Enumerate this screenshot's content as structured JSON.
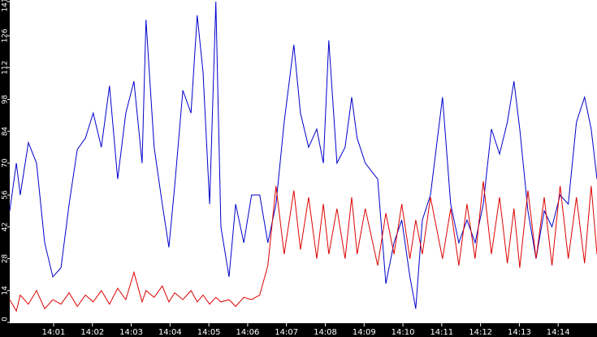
{
  "chart_data": {
    "type": "line",
    "x": [
      -0.13,
      0.04,
      0.14,
      0.35,
      0.56,
      0.77,
      0.98,
      1.19,
      1.4,
      1.61,
      1.82,
      2.02,
      2.23,
      2.44,
      2.65,
      2.86,
      3.07,
      3.28,
      3.38,
      3.59,
      3.8,
      3.97,
      4.12,
      4.33,
      4.54,
      4.7,
      4.85,
      5.02,
      5.18,
      5.31,
      5.52,
      5.69,
      5.9,
      6.1,
      6.31,
      6.52,
      6.73,
      6.94,
      7.19,
      7.36,
      7.57,
      7.78,
      7.95,
      8.09,
      8.3,
      8.51,
      8.68,
      8.82,
      9.03,
      9.35,
      9.56,
      9.77,
      9.97,
      10.18,
      10.33,
      10.5,
      10.71,
      11.02,
      11.23,
      11.44,
      11.65,
      11.86,
      12.07,
      12.28,
      12.49,
      12.69,
      12.86,
      13.01,
      13.22,
      13.43,
      13.64,
      13.84,
      14.05,
      14.26,
      14.47,
      14.68,
      14.85,
      15.0
    ],
    "series": [
      {
        "color": "#0000cc",
        "values": [
          49,
          70,
          56,
          79,
          70,
          35,
          20,
          24,
          52,
          76,
          81,
          92,
          77,
          104,
          63,
          92,
          106,
          70,
          133,
          77,
          52,
          33,
          60,
          102,
          92,
          135,
          110,
          52,
          141,
          42,
          20,
          52,
          35,
          56,
          56,
          35,
          52,
          88,
          122,
          92,
          77,
          85,
          70,
          124,
          70,
          77,
          99,
          81,
          70,
          63,
          17,
          35,
          45,
          20,
          6,
          45,
          56,
          99,
          52,
          35,
          45,
          35,
          52,
          85,
          74,
          88,
          106,
          85,
          49,
          28,
          49,
          42,
          56,
          52,
          88,
          99,
          85,
          63
        ]
      },
      {
        "color": "#dd0000",
        "values": [
          10,
          5,
          12,
          8,
          14,
          6,
          10,
          8,
          13,
          7,
          12,
          9,
          14,
          8,
          15,
          10,
          22,
          9,
          14,
          11,
          16,
          9,
          13,
          10,
          14,
          9,
          12,
          8,
          11,
          9,
          10,
          7,
          11,
          10,
          12,
          25,
          60,
          30,
          58,
          32,
          55,
          28,
          52,
          30,
          50,
          28,
          55,
          30,
          50,
          25,
          48,
          30,
          52,
          28,
          45,
          30,
          55,
          28,
          50,
          25,
          52,
          28,
          62,
          30,
          55,
          26,
          50,
          24,
          58,
          28,
          55,
          25,
          60,
          28,
          55,
          26,
          60,
          30
        ]
      }
    ],
    "xlim": [
      -0.13,
      15.0
    ],
    "xticks": [
      {
        "value": 1,
        "label": "14:01"
      },
      {
        "value": 2,
        "label": "14:02"
      },
      {
        "value": 3,
        "label": "14:03"
      },
      {
        "value": 4,
        "label": "14:04"
      },
      {
        "value": 5,
        "label": "14:05"
      },
      {
        "value": 6,
        "label": "14:06"
      },
      {
        "value": 7,
        "label": "14:07"
      },
      {
        "value": 8,
        "label": "14:08"
      },
      {
        "value": 9,
        "label": "14:09"
      },
      {
        "value": 10,
        "label": "14:10"
      },
      {
        "value": 11,
        "label": "14:11"
      },
      {
        "value": 12,
        "label": "14:12"
      },
      {
        "value": 13,
        "label": "14:13"
      },
      {
        "value": 14,
        "label": "14:14"
      }
    ],
    "ylim": [
      0,
      141
    ],
    "yticks": [
      0,
      14,
      28,
      42,
      56,
      70,
      84,
      98,
      112,
      126,
      141
    ]
  }
}
